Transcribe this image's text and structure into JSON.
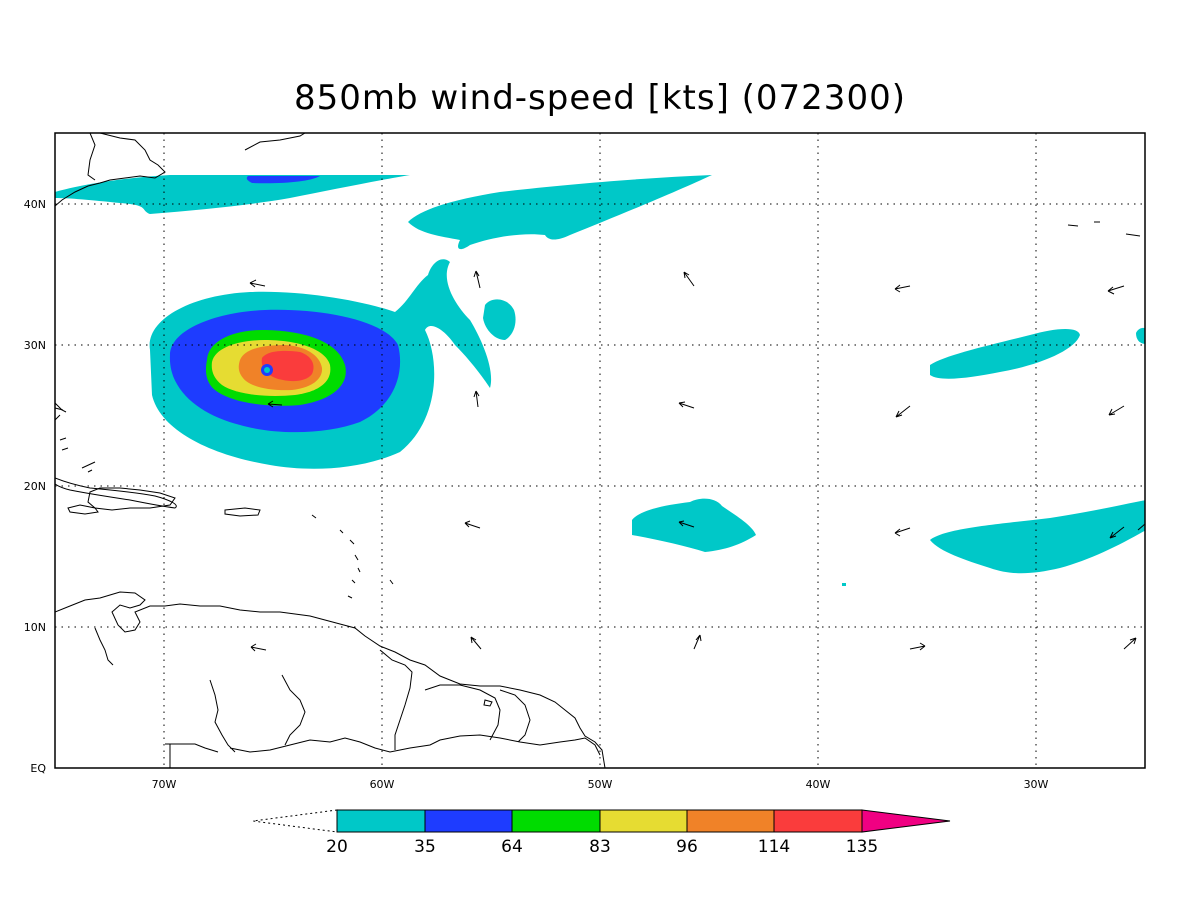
{
  "title": "850mb wind-speed [kts] (072300)",
  "map": {
    "lon_range": [
      -75,
      -25
    ],
    "lat_range": [
      0,
      45
    ],
    "lon_ticks": [
      {
        "lon": -70,
        "label": "70W"
      },
      {
        "lon": -60,
        "label": "60W"
      },
      {
        "lon": -50,
        "label": "50W"
      },
      {
        "lon": -40,
        "label": "40W"
      },
      {
        "lon": -30,
        "label": "30W"
      }
    ],
    "lat_ticks": [
      {
        "lat": 0,
        "label": "EQ"
      },
      {
        "lat": 10,
        "label": "10N"
      },
      {
        "lat": 20,
        "label": "20N"
      },
      {
        "lat": 30,
        "label": "30N"
      },
      {
        "lat": 40,
        "label": "40N"
      }
    ],
    "grid": "dotted"
  },
  "colorbar": {
    "levels": [
      "20",
      "35",
      "64",
      "83",
      "96",
      "114",
      "135"
    ],
    "colors": [
      "#00c8c8",
      "#1e3cff",
      "#00dc00",
      "#e6dc32",
      "#f08228",
      "#fa3c3c",
      "#f00082"
    ]
  },
  "hurricane_center": {
    "lon": -65.5,
    "lat": 28.2
  }
}
